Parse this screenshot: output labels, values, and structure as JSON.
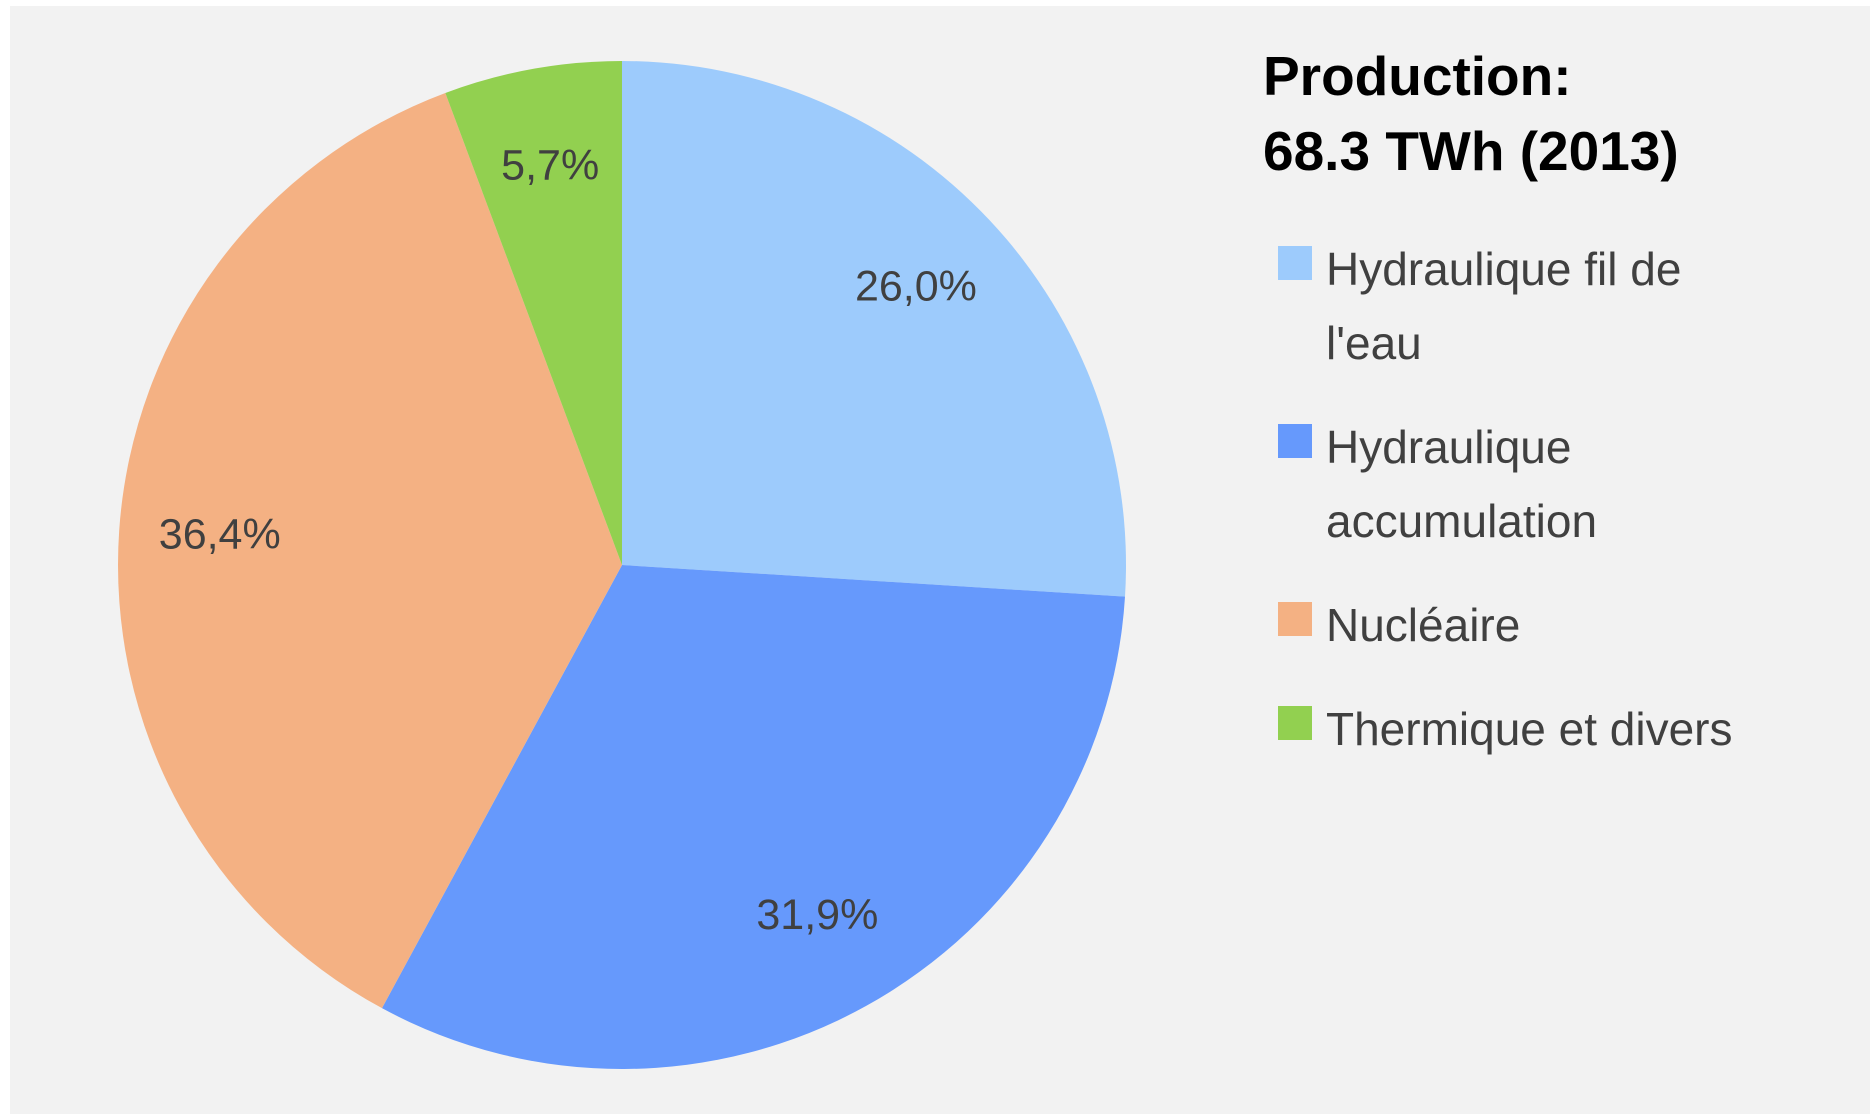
{
  "chart_data": {
    "type": "pie",
    "title": "Production:",
    "subtitle": "68.3 TWh (2013)",
    "categories": [
      "Hydraulique fil de\nl'eau",
      "Hydraulique\naccumulation",
      "Nucléaire",
      "Thermique et divers"
    ],
    "values": [
      26.0,
      31.9,
      36.4,
      5.7
    ],
    "value_labels": [
      "26,0%",
      "31,9%",
      "36,4%",
      "5,7%"
    ],
    "colors": [
      "#9dcbfc",
      "#6699fc",
      "#f4b183",
      "#92d050"
    ],
    "legend": "right"
  }
}
